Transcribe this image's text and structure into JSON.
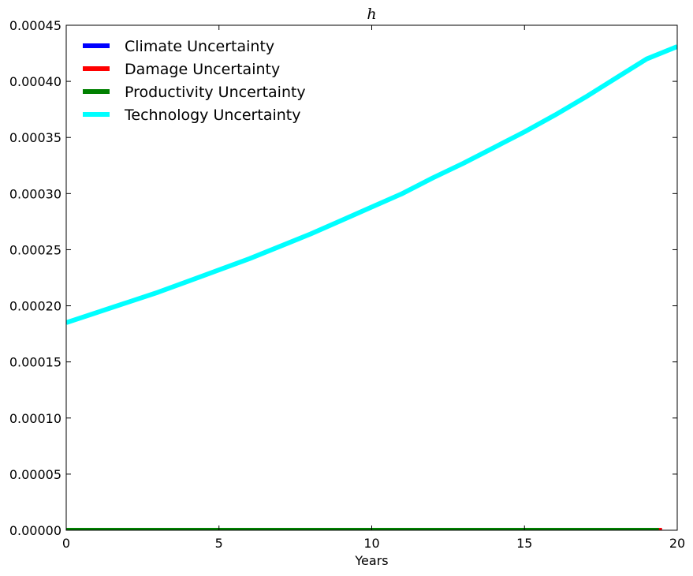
{
  "chart_data": {
    "type": "line",
    "title": "h",
    "xlabel": "Years",
    "ylabel": "",
    "xlim": [
      0,
      20
    ],
    "ylim": [
      0,
      0.00045
    ],
    "x_ticks": [
      "0",
      "5",
      "10",
      "15",
      "20"
    ],
    "y_ticks": [
      "0.00000",
      "0.00005",
      "0.00010",
      "0.00015",
      "0.00020",
      "0.00025",
      "0.00030",
      "0.00035",
      "0.00040",
      "0.00045"
    ],
    "grid": false,
    "legend_position": "top-left",
    "series": [
      {
        "name": "Climate Uncertainty",
        "color": "#0000ff",
        "x": [
          0,
          19.5
        ],
        "y": [
          0,
          0
        ]
      },
      {
        "name": "Damage Uncertainty",
        "color": "#ff0000",
        "x": [
          0,
          19.5
        ],
        "y": [
          0,
          0
        ]
      },
      {
        "name": "Productivity Uncertainty",
        "color": "#008000",
        "x": [
          0,
          19.4
        ],
        "y": [
          0,
          0
        ]
      },
      {
        "name": "Technology Uncertainty",
        "color": "#00ffff",
        "x": [
          0,
          1,
          2,
          3,
          4,
          5,
          6,
          7,
          8,
          9,
          10,
          11,
          12,
          13,
          14,
          15,
          16,
          17,
          18,
          19,
          20
        ],
        "y": [
          0.000185,
          0.000194,
          0.000203,
          0.000212,
          0.000222,
          0.000232,
          0.000242,
          0.000253,
          0.000264,
          0.000276,
          0.000288,
          0.0003,
          0.000314,
          0.000327,
          0.000341,
          0.000355,
          0.00037,
          0.000386,
          0.000403,
          0.00042,
          0.000431
        ]
      }
    ]
  }
}
